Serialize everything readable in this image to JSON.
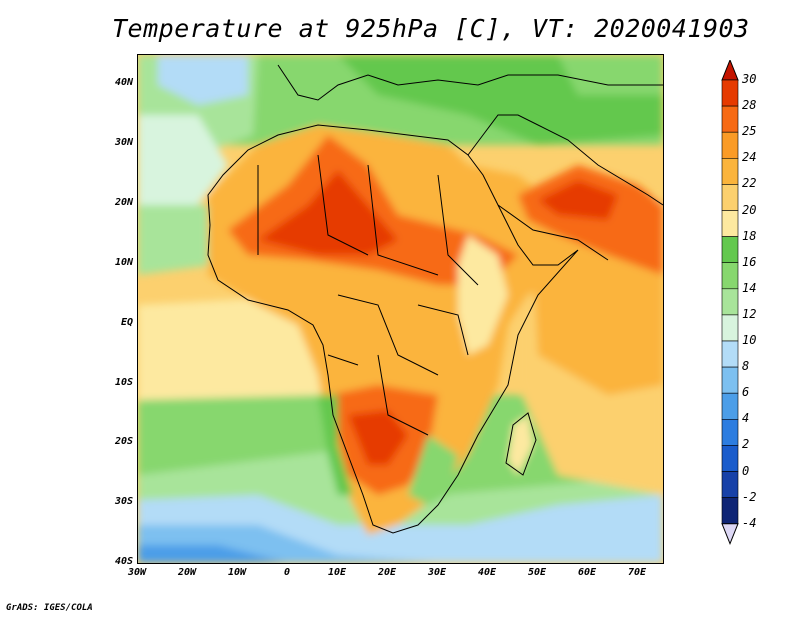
{
  "title": "Temperature at 925hPa [C], VT: 2020041903",
  "footer": "GrADS: IGES/COLA",
  "y_axis_labels": [
    "40N",
    "30N",
    "20N",
    "10N",
    "EQ",
    "10S",
    "20S",
    "30S",
    "40S"
  ],
  "x_axis_labels": [
    "30W",
    "20W",
    "10W",
    "0",
    "10E",
    "20E",
    "30E",
    "40E",
    "50E",
    "60E",
    "70E"
  ],
  "colorbar": {
    "labels": [
      "30",
      "28",
      "25",
      "24",
      "22",
      "20",
      "18",
      "16",
      "14",
      "12",
      "10",
      "8",
      "6",
      "4",
      "2",
      "0",
      "-2",
      "-4"
    ],
    "colors": [
      "#e63a00",
      "#f76a14",
      "#fa9b26",
      "#fbb43c",
      "#fcd06e",
      "#fde9a0",
      "#63c84e",
      "#87d76e",
      "#a8e49a",
      "#d8f4de",
      "#b3dcf7",
      "#7dc0f0",
      "#4c9ee8",
      "#2d7de0",
      "#1a5ccc",
      "#1741a8",
      "#0f2575"
    ],
    "under_color": "#ddd8f5",
    "over_color": "#c41400"
  },
  "map": {
    "type": "filled temperature contour map",
    "lat_range": [
      -40,
      45
    ],
    "lon_range": [
      -30,
      75
    ],
    "region": "Africa and surrounding oceans"
  }
}
